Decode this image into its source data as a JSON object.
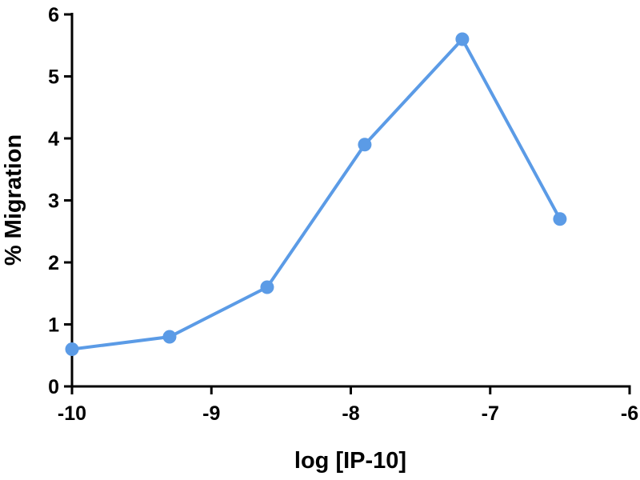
{
  "chart_data": {
    "type": "line",
    "xlabel": "log [IP-10]",
    "ylabel": "% Migration",
    "x": [
      -10,
      -9.3,
      -8.6,
      -7.9,
      -7.2,
      -6.5
    ],
    "series": [
      {
        "color": "#5b9be6",
        "values": [
          0.6,
          0.8,
          1.6,
          3.9,
          5.6,
          2.7
        ]
      }
    ],
    "xlim": [
      -10,
      -6
    ],
    "xticks": [
      -10,
      -9,
      -8,
      -7,
      -6
    ],
    "ylim": [
      0,
      6
    ],
    "yticks": [
      0,
      1,
      2,
      3,
      4,
      5,
      6
    ],
    "grid": false
  }
}
